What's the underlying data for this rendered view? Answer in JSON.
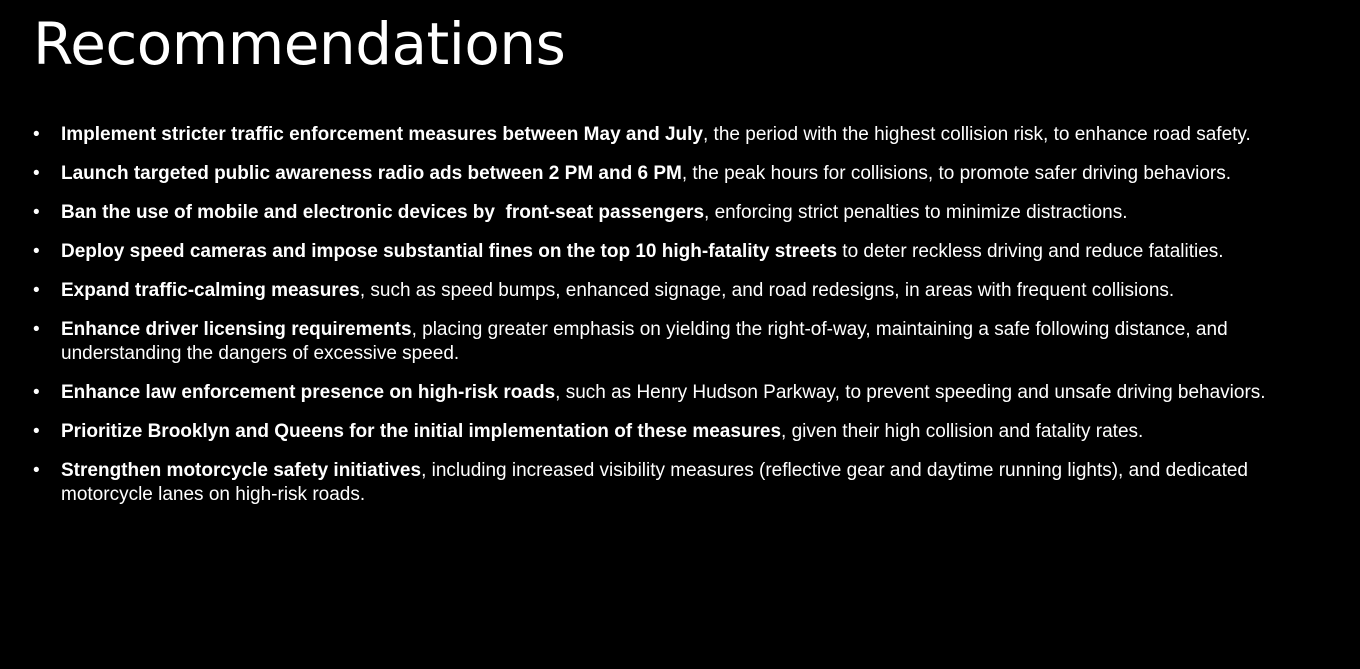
{
  "slide": {
    "title": "Recommendations",
    "bullet_glyph": "•",
    "items": [
      {
        "bold": "Implement stricter traffic enforcement measures between May and July",
        "text": ", the period with the highest collision risk, to enhance road safety."
      },
      {
        "bold": "Launch targeted public awareness radio ads between 2 PM and 6 PM",
        "text": ", the peak hours for collisions, to promote safer driving behaviors."
      },
      {
        "bold": "Ban the use of mobile and electronic devices by  front-seat passengers",
        "text": ", enforcing strict penalties to minimize distractions."
      },
      {
        "bold": "Deploy speed cameras and impose substantial fines on the top 10 high-fatality streets",
        "text": " to deter reckless driving and reduce fatalities."
      },
      {
        "bold": "Expand traffic-calming measures",
        "text": ", such as speed bumps, enhanced signage, and road redesigns, in areas with frequent collisions."
      },
      {
        "bold": "Enhance driver licensing requirements",
        "text": ", placing greater emphasis on yielding the right-of-way, maintaining a safe following distance, and understanding the dangers of excessive speed."
      },
      {
        "bold": "Enhance law enforcement presence on high-risk roads",
        "text": ", such as Henry Hudson Parkway, to prevent speeding and unsafe driving behaviors."
      },
      {
        "bold": "Prioritize Brooklyn and Queens for the initial implementation of these measures",
        "text": ", given their high collision and fatality rates."
      },
      {
        "bold": "Strengthen motorcycle safety initiatives",
        "text": ", including increased visibility measures (reflective gear and daytime running lights), and dedicated motorcycle lanes on high-risk roads."
      }
    ]
  }
}
